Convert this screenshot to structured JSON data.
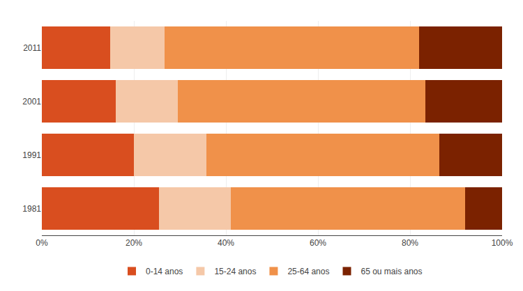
{
  "chart_data": {
    "type": "bar",
    "orientation": "horizontal",
    "stacked": true,
    "categories": [
      "2011",
      "2001",
      "1991",
      "1981"
    ],
    "series": [
      {
        "name": "0-14 anos",
        "color": "#D94E1F",
        "values": [
          14.9,
          16.0,
          20.0,
          25.5
        ]
      },
      {
        "name": "15-24 anos",
        "color": "#F5C8A8",
        "values": [
          11.7,
          13.6,
          15.7,
          15.5
        ]
      },
      {
        "name": "25-64 anos",
        "color": "#F0914A",
        "values": [
          55.4,
          53.8,
          50.6,
          51.0
        ]
      },
      {
        "name": "65 ou mais anos",
        "color": "#7B2200",
        "values": [
          18.0,
          16.6,
          13.7,
          8.0
        ]
      }
    ],
    "xlim": [
      0,
      100
    ],
    "xticks": [
      {
        "value": 0,
        "label": "0%"
      },
      {
        "value": 20,
        "label": "20%"
      },
      {
        "value": 40,
        "label": "40%"
      },
      {
        "value": 60,
        "label": "60%"
      },
      {
        "value": 80,
        "label": "80%"
      },
      {
        "value": 100,
        "label": "100%"
      }
    ],
    "grid": true,
    "legend": "bottom"
  }
}
